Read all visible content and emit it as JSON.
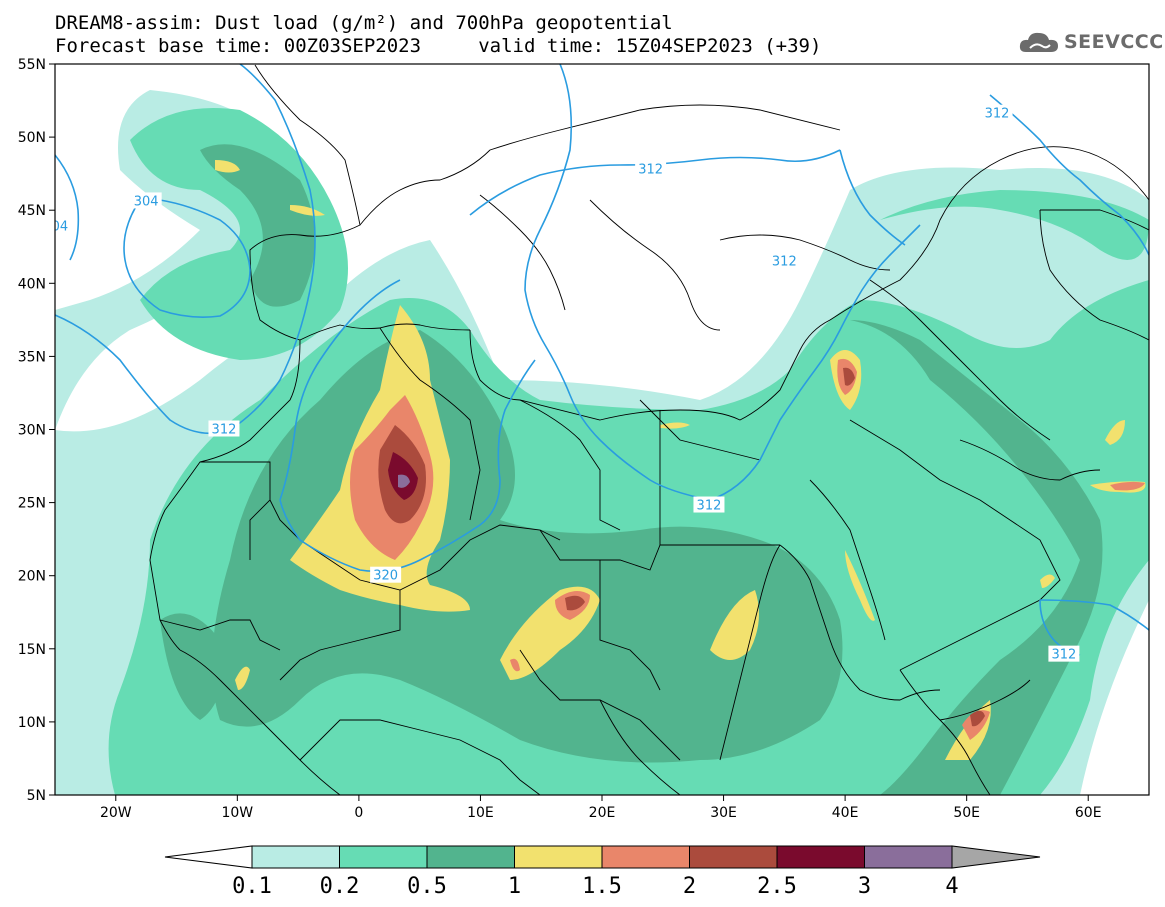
{
  "header": {
    "line1": "DREAM8-assim: Dust load (g/m²) and 700hPa geopotential",
    "line2": "Forecast base time: 00Z03SEP2023     valid time: 15Z04SEP2023 (+39)"
  },
  "logo": {
    "text": "SEEVCCC",
    "icon": "cloud-icon"
  },
  "axes": {
    "lat_labels": [
      "55N",
      "50N",
      "45N",
      "40N",
      "35N",
      "30N",
      "25N",
      "20N",
      "15N",
      "10N",
      "5N"
    ],
    "lat_values": [
      55,
      50,
      45,
      40,
      35,
      30,
      25,
      20,
      15,
      10,
      5
    ],
    "lon_labels": [
      "20W",
      "10W",
      "0",
      "10E",
      "20E",
      "30E",
      "40E",
      "50E",
      "60E"
    ],
    "lon_values": [
      -20,
      -10,
      0,
      10,
      20,
      30,
      40,
      50,
      60
    ],
    "lon_range": [
      -25,
      65
    ],
    "lat_range": [
      5,
      55
    ]
  },
  "contour_labels": [
    {
      "text": "304",
      "lon": -17.5,
      "lat": 45.6
    },
    {
      "text": "04",
      "lon": -24.6,
      "lat": 43.9
    },
    {
      "text": "312",
      "lon": -11.1,
      "lat": 30.0
    },
    {
      "text": "312",
      "lon": 24.0,
      "lat": 47.8
    },
    {
      "text": "312",
      "lon": 52.5,
      "lat": 51.6
    },
    {
      "text": "312",
      "lon": 35.0,
      "lat": 41.5
    },
    {
      "text": "312",
      "lon": 28.8,
      "lat": 24.8
    },
    {
      "text": "312",
      "lon": 58.0,
      "lat": 14.6
    },
    {
      "text": "320",
      "lon": 2.2,
      "lat": 20.0
    }
  ],
  "colorbar": {
    "ticks": [
      "0.1",
      "0.2",
      "0.5",
      "1",
      "1.5",
      "2",
      "2.5",
      "3",
      "4"
    ],
    "colors": [
      "#b9ece4",
      "#66dcb4",
      "#52b48e",
      "#f2e16e",
      "#e9866a",
      "#ab4b3d",
      "#7a0a2d",
      "#8a6e9b",
      "#a6a6a6"
    ],
    "under_color": "#ffffff"
  },
  "styles": {
    "contour_color": "#2a9ce0",
    "border_color": "#000000"
  }
}
